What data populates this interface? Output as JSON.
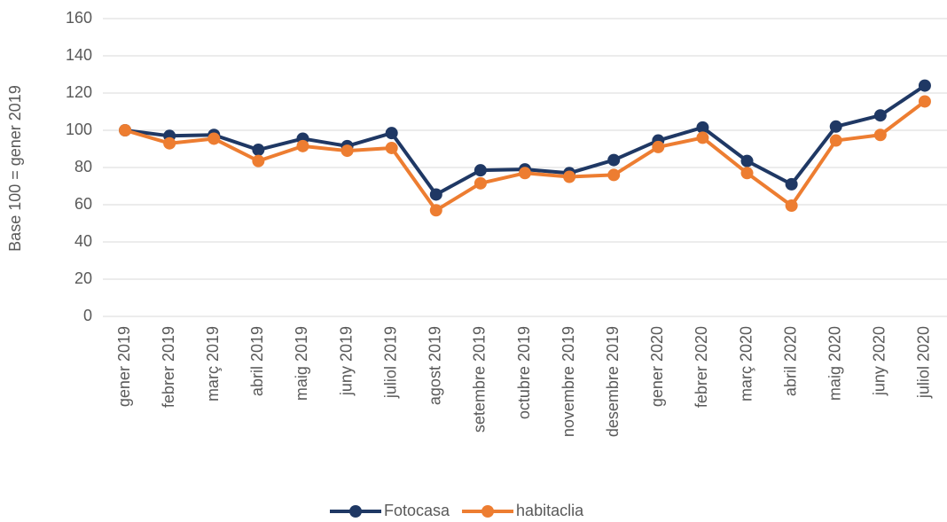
{
  "chart_data": {
    "type": "line",
    "y_label": "Base 100 = gener 2019",
    "categories": [
      "gener 2019",
      "febrer 2019",
      "març 2019",
      "abril 2019",
      "maig 2019",
      "juny 2019",
      "juliol 2019",
      "agost 2019",
      "setembre 2019",
      "octubre 2019",
      "novembre 2019",
      "desembre 2019",
      "gener 2020",
      "febrer 2020",
      "març 2020",
      "abril 2020",
      "maig 2020",
      "juny 2020",
      "juliol 2020"
    ],
    "series": [
      {
        "name": "Fotocasa",
        "color": "#1f3864",
        "values": [
          100,
          97,
          97.5,
          89.5,
          95.5,
          91.5,
          98.5,
          65.5,
          78.5,
          79,
          77,
          84,
          94.5,
          101.5,
          83.5,
          71,
          102,
          108,
          124
        ]
      },
      {
        "name": "habitaclia",
        "color": "#ed7d31",
        "values": [
          100,
          93,
          95.5,
          83.5,
          91.5,
          89,
          90.5,
          57,
          71.5,
          77,
          75,
          76,
          91,
          96,
          77,
          59.5,
          94.5,
          97.5,
          115.5
        ]
      }
    ],
    "ylim": [
      0,
      160
    ],
    "yticks": [
      0,
      20,
      40,
      60,
      80,
      100,
      120,
      140,
      160
    ],
    "grid": true,
    "legend": "bottom"
  }
}
